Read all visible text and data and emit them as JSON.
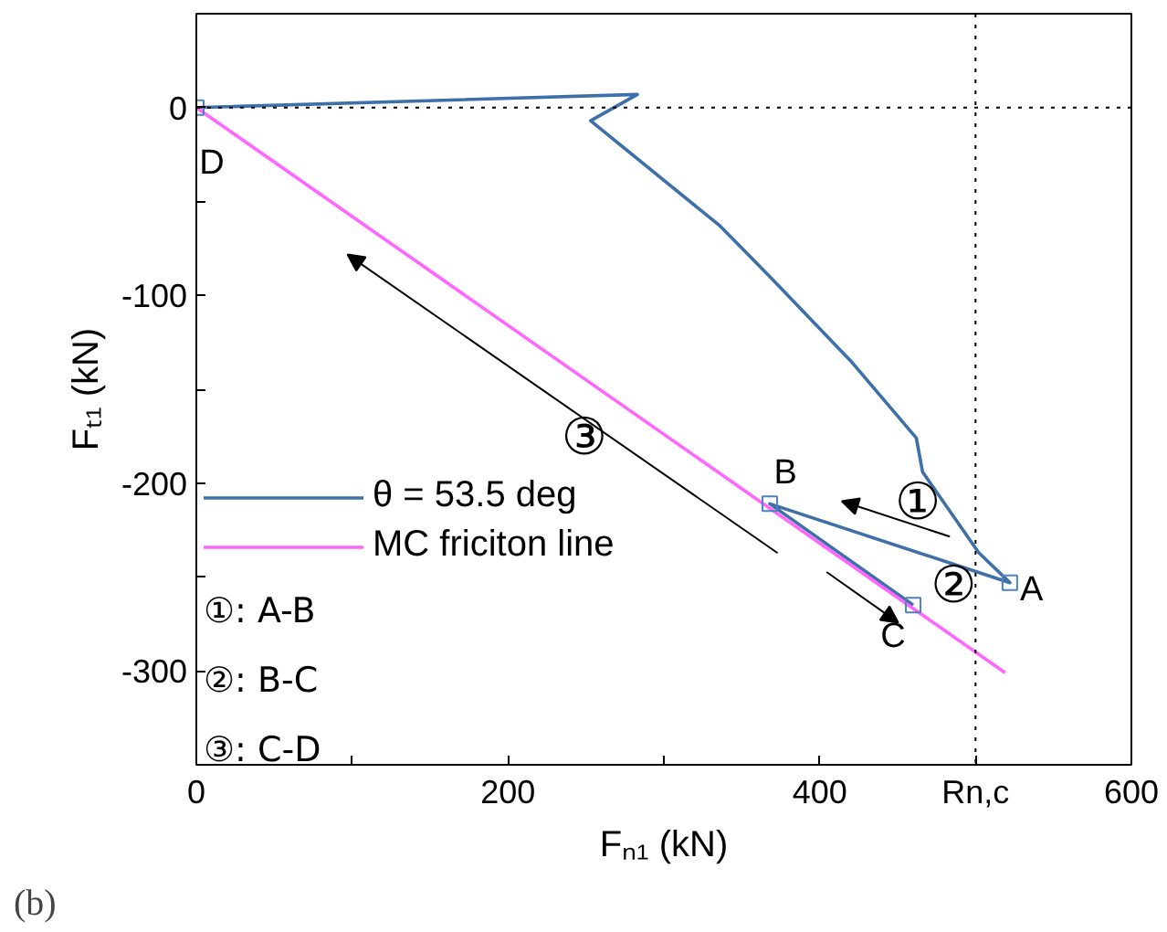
{
  "chart_data": {
    "type": "line",
    "xlabel": "Fₙ₁ (kN)",
    "ylabel": "Fₜ₁ (kN)",
    "xlim": [
      0,
      600
    ],
    "ylim": [
      -350,
      50
    ],
    "xticks": [
      0,
      {
        "value": 100,
        "label": null
      },
      200,
      {
        "value": 300,
        "label": null
      },
      400,
      {
        "value": 500,
        "label": "Rn,c"
      },
      600
    ],
    "yticks": [
      {
        "value": -350,
        "label": null
      },
      -300,
      {
        "value": -250,
        "label": null
      },
      -200,
      {
        "value": -150,
        "label": null
      },
      -100,
      {
        "value": -50,
        "label": null
      },
      0,
      {
        "value": 50,
        "label": null
      }
    ],
    "series": [
      {
        "name": "θ = 53.5 deg",
        "color": "#3d6fa8",
        "x": [
          0,
          283,
          253,
          336,
          368,
          420,
          462,
          466,
          502,
          522,
          368,
          460
        ],
        "values": [
          0,
          7,
          -7,
          -63,
          -90,
          -135,
          -176,
          -194,
          -237,
          -253,
          -211,
          -265
        ]
      },
      {
        "name": "MC friciton line",
        "color": "#ff66ff",
        "x": [
          0,
          519
        ],
        "values": [
          0,
          -301
        ]
      },
      {
        "color": "#4f81bd",
        "type": "scatter",
        "marker": "square",
        "x": [
          522,
          368,
          460,
          0
        ],
        "values": [
          -253,
          -211,
          -265,
          0
        ]
      }
    ],
    "ref_lines": [
      {
        "axis": "x",
        "value": 500,
        "line_style": "dotted",
        "color": "#000000"
      },
      {
        "axis": "y",
        "value": 0,
        "line_style": "dotted",
        "color": "#000000"
      }
    ],
    "legend": "bottom left",
    "grid": false,
    "annotations": [
      "A",
      "B",
      "C",
      "D",
      "①",
      "②",
      "③",
      "①: A-B",
      "②: B-C",
      "③: C-D",
      "(b)"
    ]
  }
}
